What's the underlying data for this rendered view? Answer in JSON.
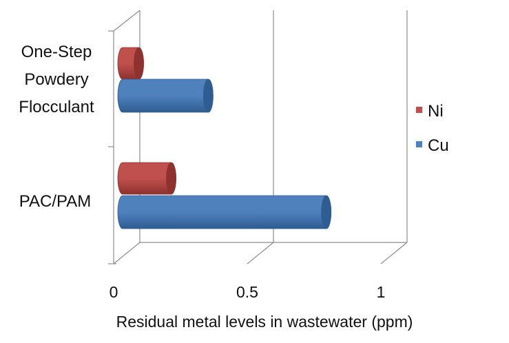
{
  "chart_data": {
    "type": "bar",
    "orientation": "horizontal",
    "style": "3d-cylinder",
    "categories": [
      "One-Step Powdery Flocculant",
      "PAC/PAM"
    ],
    "category_lines": [
      [
        "One-Step",
        "Powdery",
        "Flocculant"
      ],
      [
        "PAC/PAM"
      ]
    ],
    "series": [
      {
        "name": "Ni",
        "values": [
          0.07,
          0.21
        ],
        "color": "#c0504d",
        "dark": "#8e3230"
      },
      {
        "name": "Cu",
        "values": [
          0.37,
          0.88
        ],
        "color": "#4f81bd",
        "dark": "#2f5d92"
      }
    ],
    "title": "",
    "xlabel": "Residual metal levels in wastewater (ppm)",
    "ylabel": "",
    "xlim": [
      0,
      1
    ],
    "xticks": [
      0,
      0.5,
      1
    ],
    "xtick_labels": [
      "0",
      "0.5",
      "1"
    ],
    "grid": true,
    "legend": {
      "position": "right",
      "order": [
        "Ni",
        "Cu"
      ]
    },
    "colors": {
      "Ni": "#c0504d",
      "Cu": "#4f81bd",
      "gridline": "#8c8c8c"
    }
  }
}
